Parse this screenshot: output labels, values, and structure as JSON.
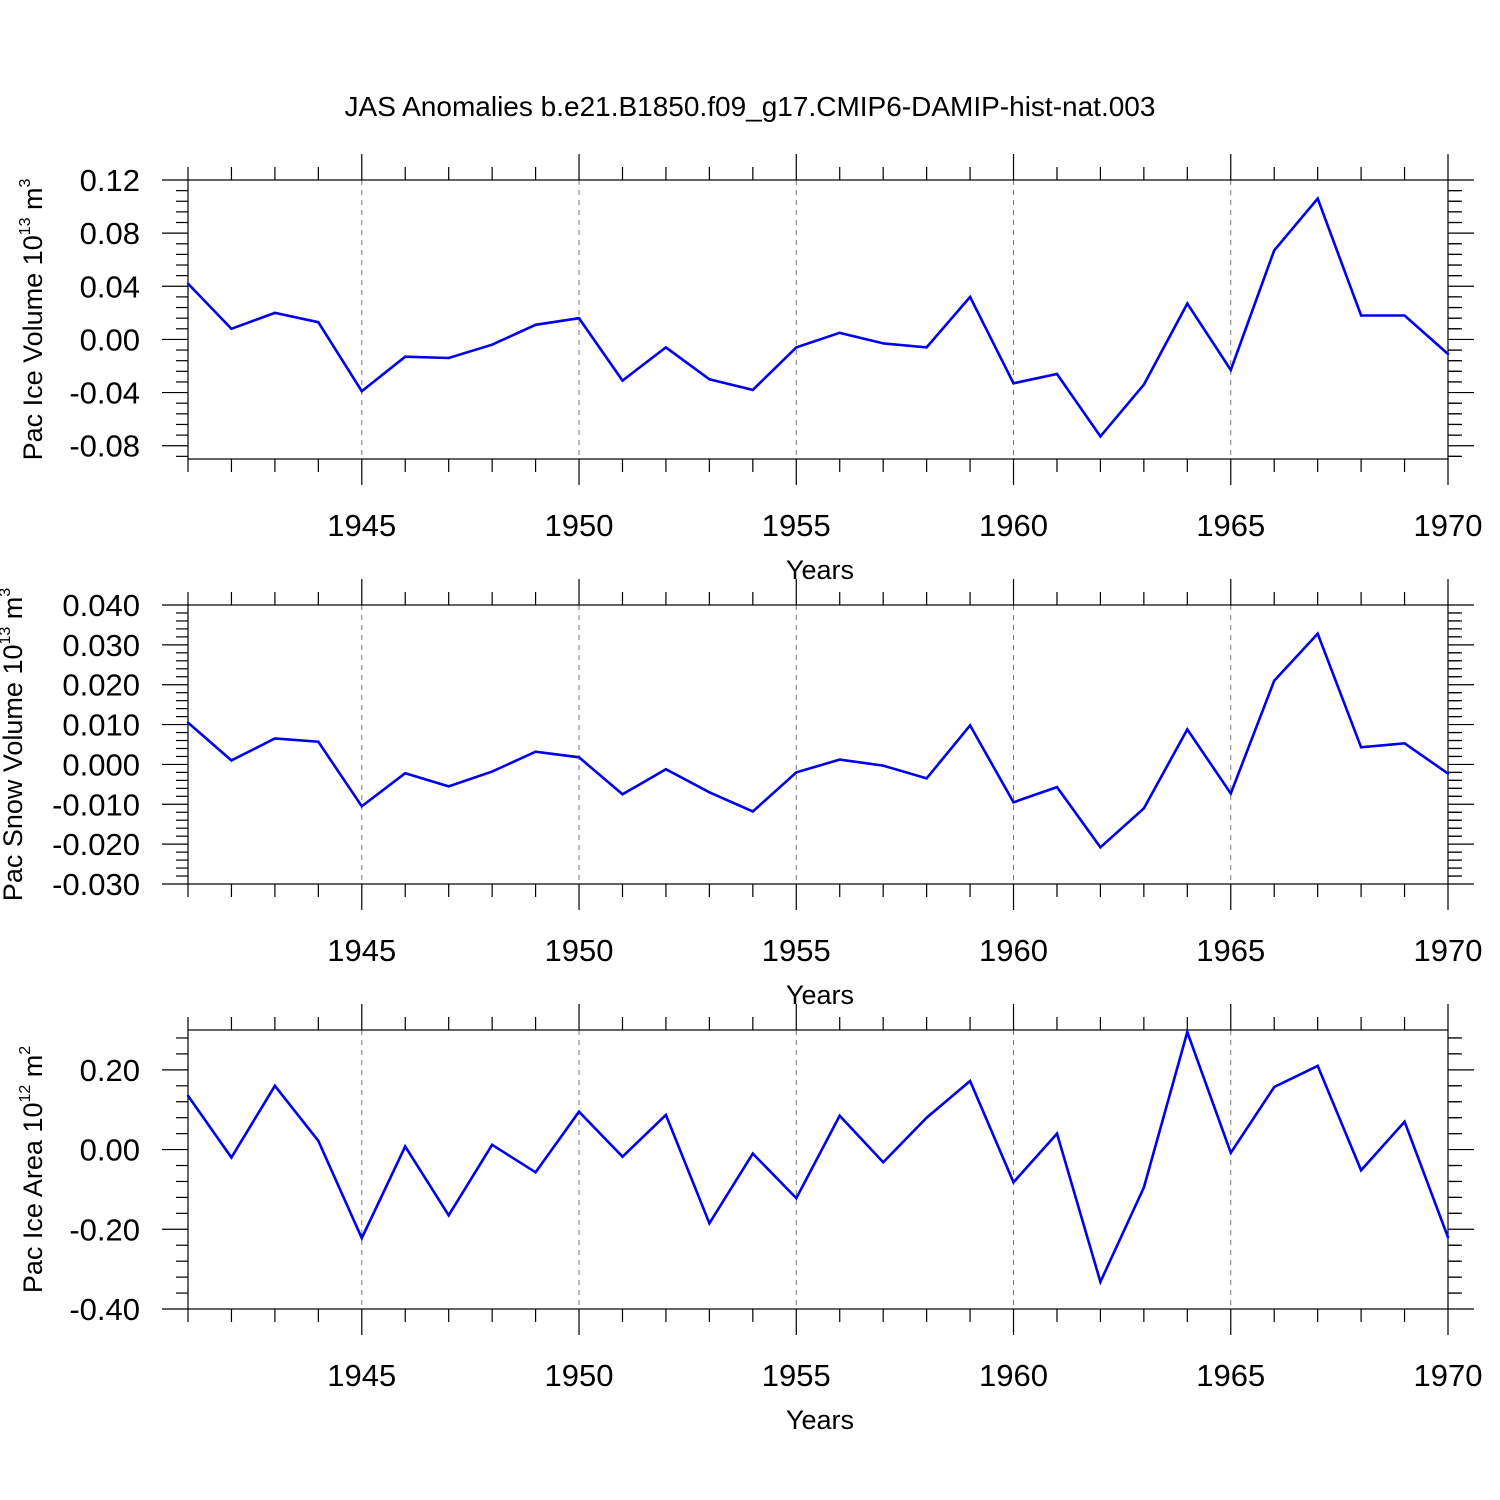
{
  "chart_data": [
    {
      "type": "line",
      "title": "JAS Anomalies b.e21.B1850.f09_g17.CMIP6-DAMIP-hist-nat.003",
      "xlabel": "Years",
      "ylabel_main": "Pac Ice Volume 10",
      "ylabel_exp": "13",
      "ylabel_unit": " m",
      "ylabel_unit_exp": "3",
      "xlim": [
        1941,
        1970
      ],
      "ylim": [
        -0.09,
        0.12
      ],
      "yticks": [
        -0.08,
        -0.04,
        0.0,
        0.04,
        0.08,
        0.12
      ],
      "ytick_labels": [
        "-0.08",
        "-0.04",
        "0.00",
        "0.04",
        "0.08",
        "0.12"
      ],
      "xticks": [
        1945,
        1950,
        1955,
        1960,
        1965,
        1970
      ],
      "xtick_labels": [
        "1945",
        "1950",
        "1955",
        "1960",
        "1965",
        "1970"
      ],
      "line_color": "#0000ee",
      "x": [
        1941,
        1942,
        1943,
        1944,
        1945,
        1946,
        1947,
        1948,
        1949,
        1950,
        1951,
        1952,
        1953,
        1954,
        1955,
        1956,
        1957,
        1958,
        1959,
        1960,
        1961,
        1962,
        1963,
        1964,
        1965,
        1966,
        1967,
        1968,
        1969,
        1970
      ],
      "values": [
        0.042,
        0.008,
        0.02,
        0.013,
        -0.039,
        -0.013,
        -0.014,
        -0.004,
        0.011,
        0.016,
        -0.031,
        -0.006,
        -0.03,
        -0.038,
        -0.006,
        0.005,
        -0.003,
        -0.006,
        0.032,
        -0.033,
        -0.026,
        -0.073,
        -0.034,
        0.027,
        -0.023,
        0.067,
        0.106,
        0.018,
        0.018,
        -0.011
      ]
    },
    {
      "type": "line",
      "xlabel": "Years",
      "ylabel_main": "Pac Snow Volume 10",
      "ylabel_exp": "13",
      "ylabel_unit": " m",
      "ylabel_unit_exp": "3",
      "xlim": [
        1941,
        1970
      ],
      "ylim": [
        -0.03,
        0.04
      ],
      "yticks": [
        -0.03,
        -0.02,
        -0.01,
        0.0,
        0.01,
        0.02,
        0.03,
        0.04
      ],
      "ytick_labels": [
        "-0.030",
        "-0.020",
        "-0.010",
        "0.000",
        "0.010",
        "0.020",
        "0.030",
        "0.040"
      ],
      "xticks": [
        1945,
        1950,
        1955,
        1960,
        1965,
        1970
      ],
      "xtick_labels": [
        "1945",
        "1950",
        "1955",
        "1960",
        "1965",
        "1970"
      ],
      "line_color": "#0000ee",
      "x": [
        1941,
        1942,
        1943,
        1944,
        1945,
        1946,
        1947,
        1948,
        1949,
        1950,
        1951,
        1952,
        1953,
        1954,
        1955,
        1956,
        1957,
        1958,
        1959,
        1960,
        1961,
        1962,
        1963,
        1964,
        1965,
        1966,
        1967,
        1968,
        1969,
        1970
      ],
      "values": [
        0.0105,
        0.001,
        0.0065,
        0.0057,
        -0.0105,
        -0.0022,
        -0.0055,
        -0.0018,
        0.0032,
        0.0018,
        -0.0075,
        -0.0012,
        -0.007,
        -0.0118,
        -0.002,
        0.0012,
        -0.0003,
        -0.0035,
        0.0098,
        -0.0095,
        -0.0057,
        -0.0208,
        -0.011,
        0.0088,
        -0.0073,
        0.021,
        0.0328,
        0.0043,
        0.0053,
        -0.0023
      ]
    },
    {
      "type": "line",
      "xlabel": "Years",
      "ylabel_main": "Pac Ice Area 10",
      "ylabel_exp": "12",
      "ylabel_unit": " m",
      "ylabel_unit_exp": "2",
      "xlim": [
        1941,
        1970
      ],
      "ylim": [
        -0.4,
        0.3
      ],
      "yticks": [
        -0.4,
        -0.2,
        0.0,
        0.2
      ],
      "ytick_labels": [
        "-0.40",
        "-0.20",
        "0.00",
        "0.20"
      ],
      "xticks": [
        1945,
        1950,
        1955,
        1960,
        1965,
        1970
      ],
      "xtick_labels": [
        "1945",
        "1950",
        "1955",
        "1960",
        "1965",
        "1970"
      ],
      "line_color": "#0000ee",
      "x": [
        1941,
        1942,
        1943,
        1944,
        1945,
        1946,
        1947,
        1948,
        1949,
        1950,
        1951,
        1952,
        1953,
        1954,
        1955,
        1956,
        1957,
        1958,
        1959,
        1960,
        1961,
        1962,
        1963,
        1964,
        1965,
        1966,
        1967,
        1968,
        1969,
        1970
      ],
      "values": [
        0.135,
        -0.02,
        0.16,
        0.022,
        -0.222,
        0.008,
        -0.165,
        0.012,
        -0.057,
        0.095,
        -0.018,
        0.087,
        -0.185,
        -0.01,
        -0.122,
        0.085,
        -0.032,
        0.08,
        0.172,
        -0.082,
        0.04,
        -0.332,
        -0.095,
        0.295,
        -0.008,
        0.157,
        0.21,
        -0.052,
        0.07,
        -0.22
      ]
    }
  ]
}
